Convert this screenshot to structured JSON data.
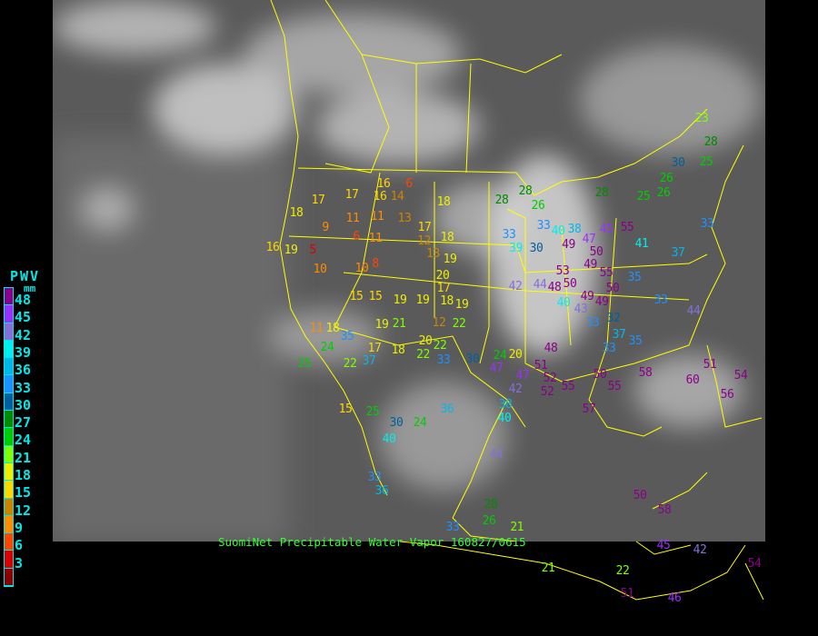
{
  "caption": "SuomiNet Precipitable Water Vapor 160827/0615",
  "legend": {
    "title": "PWV",
    "unit": "mm",
    "labels": [
      "48",
      "45",
      "42",
      "39",
      "36",
      "33",
      "30",
      "27",
      "24",
      "21",
      "18",
      "15",
      "12",
      "9",
      "6",
      "3"
    ],
    "colors": [
      "#8b008b",
      "#9b30ff",
      "#8470d8",
      "#00eeee",
      "#00b8e8",
      "#1e90ff",
      "#00609f",
      "#008b00",
      "#00cd00",
      "#7fff00",
      "#eeee00",
      "#ffd700",
      "#cd8500",
      "#ff8c00",
      "#ff4500",
      "#dd0000",
      "#8b0000"
    ]
  },
  "map_line_color": "#ffff00",
  "stations": [
    18,
    17,
    16,
    6,
    17,
    16,
    14,
    18,
    9,
    11,
    11,
    13,
    17,
    18,
    6,
    11,
    12,
    13,
    19,
    16,
    5,
    10,
    8,
    10,
    19,
    20,
    17,
    15,
    15,
    19,
    19,
    18,
    19,
    12,
    22,
    19,
    21,
    11,
    18,
    20,
    22,
    22,
    17,
    18,
    33,
    30,
    37,
    24,
    25,
    30,
    24,
    36,
    15,
    40,
    33,
    36,
    28,
    26,
    33,
    21,
    22,
    46,
    51,
    28,
    28,
    26,
    33,
    33,
    39,
    40,
    38,
    30,
    49,
    47,
    50,
    49,
    55,
    45,
    41,
    37,
    53,
    50,
    48,
    44,
    42,
    55,
    50,
    49,
    40,
    43,
    33,
    32,
    37,
    35,
    33,
    51,
    47,
    52,
    55,
    42,
    52,
    50,
    55,
    58,
    60,
    51,
    54,
    56,
    57,
    40,
    38,
    47,
    48,
    49,
    33,
    44,
    35,
    23,
    28,
    25,
    30,
    26,
    25,
    26,
    33,
    28,
    50,
    58,
    45,
    42,
    54,
    44,
    21,
    24,
    20,
    22,
    25,
    35,
    33
  ]
}
